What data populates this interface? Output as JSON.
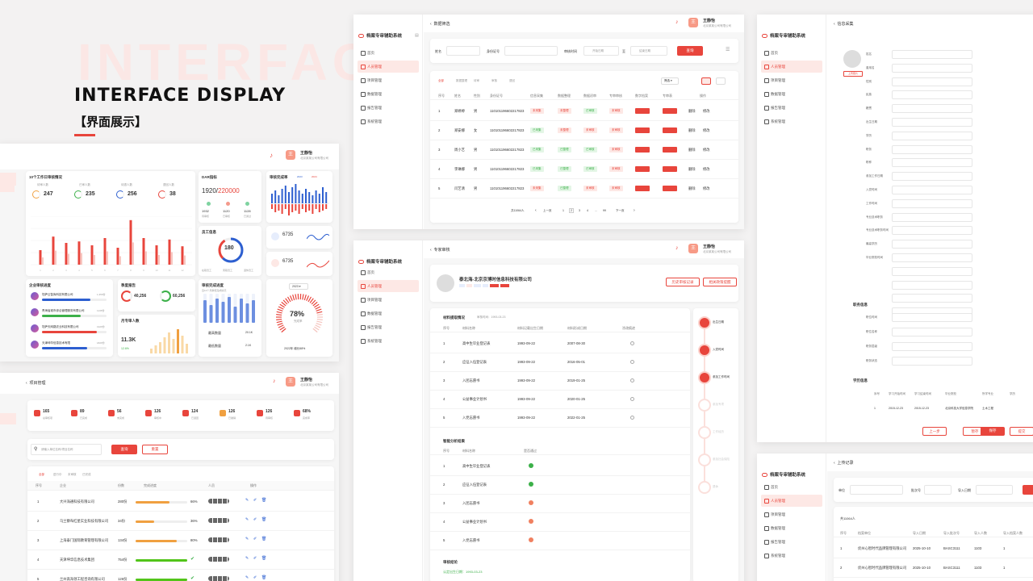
{
  "hero": {
    "bg_word": "INTERFACE",
    "title": "INTERFACE DISPLAY",
    "subtitle": "【界面展示】"
  },
  "user": {
    "name": "王静怡",
    "company": "北京某某公司有限公司",
    "avatar": "王"
  },
  "app": {
    "name": "档案专审辅助系统",
    "nav": [
      "首页",
      "人员管理",
      "项目管理",
      "数据管理",
      "报告管理",
      "系统管理"
    ]
  },
  "dashboard": {
    "work_title": "10个工作日审核情况",
    "stats": [
      {
        "label": "待审人数",
        "value": "247"
      },
      {
        "label": "已审人数",
        "value": "235"
      },
      {
        "label": "待退人数",
        "value": "256"
      },
      {
        "label": "退回人数",
        "value": "38"
      }
    ],
    "chart_data": {
      "type": "bar",
      "categories": [
        "1",
        "2",
        "3",
        "4",
        "5",
        "6",
        "7",
        "8",
        "9",
        "10",
        "11",
        "12"
      ],
      "values": [
        30,
        58,
        45,
        48,
        40,
        55,
        35,
        92,
        55,
        40,
        52,
        38
      ],
      "ylim": [
        0,
        100
      ]
    },
    "dar_title": "DAR指标",
    "dar_value": "1920",
    "dar_total": "220000",
    "dar_sub": [
      {
        "v": "1932",
        "l": "待审核"
      },
      {
        "v": "1120",
        "l": "已审核"
      },
      {
        "v": "1128",
        "l": "已通过"
      }
    ],
    "staff_title": "员工信息",
    "staff_total": "180",
    "staff_legend": [
      "在职员工",
      "离职员工",
      "退休员工"
    ],
    "review_title": "审核完成率",
    "review_legend": [
      "2023",
      "2024"
    ],
    "mini1": "6735",
    "mini2": "6735",
    "company_title": "企业审核进度",
    "companies": [
      {
        "name": "坦萨云智库科技有限公司",
        "v": "1,356份",
        "p": 0.75
      },
      {
        "name": "青海省城市综合管理服务有限公司",
        "v": "1136份",
        "p": 0.6
      },
      {
        "name": "坦萨天网路农业科技有限公司",
        "v": "1926份",
        "p": 0.85
      },
      {
        "name": "天津坤华信息技术有限",
        "v": "1826份",
        "p": 0.7
      }
    ],
    "quarter_title": "季度报告",
    "q1": "40,256",
    "q2": "60,256",
    "monthly_title": "月专审人数",
    "monthly_value": "11.3K",
    "monthly_pct": "12.6%",
    "audit_title": "审核完成进度",
    "audit_sub": "近12个月审核完成情况",
    "max_label": "最高数量",
    "max_val": "20.1K",
    "min_label": "最低数量",
    "min_val": "2.1K",
    "gauge_year": "2023",
    "gauge_pct": "78%",
    "gauge_label": "完成率",
    "gauge_foot": "2022年 增长68%"
  },
  "filter_panel": {
    "crumb": "数据筛选",
    "labels": {
      "name": "姓名",
      "id": "身份证号",
      "time": "审核时间",
      "to": "至",
      "query": "查询"
    },
    "ph_start": "开始日期",
    "ph_end": "结束日期",
    "tabs": [
      "全部",
      "数据整理",
      "待审",
      "审核",
      "退回"
    ],
    "dropdown": "筛选",
    "headers": [
      "序号",
      "姓名",
      "性别",
      "身份证号",
      "信息采集",
      "数据整理",
      "数据初审",
      "专审审核",
      "数字档案",
      "专审表",
      "操作"
    ],
    "rows": [
      {
        "i": "1",
        "n": "郑婷婷",
        "s": "男",
        "id": "110101196602217823",
        "c1": "未采集",
        "c2": "未整理",
        "c3": "已审核",
        "c4": "未审核",
        "op1": "删除",
        "op2": "修改"
      },
      {
        "i": "2",
        "n": "郑安娜",
        "s": "女",
        "id": "110101196602217823",
        "c1": "已采集",
        "c2": "未整理",
        "c3": "未审核",
        "c4": "未审核",
        "op1": "删除",
        "op2": "修改"
      },
      {
        "i": "3",
        "n": "周小艺",
        "s": "男",
        "id": "110101196602217823",
        "c1": "已采集",
        "c2": "已整理",
        "c3": "已审核",
        "c4": "未审核",
        "op1": "删除",
        "op2": "修改"
      },
      {
        "i": "4",
        "n": "李琳娜",
        "s": "男",
        "id": "110101196602217823",
        "c1": "已采集",
        "c2": "已整理",
        "c3": "已审核",
        "c4": "未审核",
        "op1": "删除",
        "op2": "修改"
      },
      {
        "i": "5",
        "n": "闫艺清",
        "s": "男",
        "id": "110101196602217823",
        "c1": "未采集",
        "c2": "已整理",
        "c3": "未审核",
        "c4": "未审核",
        "op1": "删除",
        "op2": "修改"
      }
    ],
    "pager": {
      "total": "共11064人",
      "prev": "上一页",
      "pages": [
        "1",
        "2",
        "3",
        "4",
        "...",
        "99"
      ],
      "next": "下一页"
    }
  },
  "info_panel": {
    "crumb": "信息采集",
    "photo_btn": "上传照片",
    "fields": [
      "姓名",
      "曾用名",
      "性别",
      "民族",
      "籍贯",
      "出生日期",
      "学历",
      "职务",
      "职称",
      "参加工作日期",
      "入党时间",
      "工作时间",
      "专业技术职务",
      "专业技术职务时间",
      "最高学历",
      "毕业院校时间",
      "",
      "",
      "",
      ""
    ],
    "job_title": "职务信息",
    "job_fields": [
      "职位时间",
      "职位名称",
      "职务层级",
      "职务状态"
    ],
    "edu_title": "学历信息",
    "edu_headers": [
      "序号",
      "学习开始时间",
      "学习结束时间",
      "毕业院校",
      "所学专业",
      "学历"
    ],
    "edu_row": [
      "1",
      "2015-12-23",
      "2015-12-23",
      "北京科技大学信息学院",
      "土木工程"
    ],
    "buttons": [
      "上一步",
      "暂存",
      "保存",
      "提交"
    ]
  },
  "project_panel": {
    "crumb": "项目管理",
    "stats": [
      {
        "v": "165",
        "l": "总审核项"
      },
      {
        "v": "89",
        "l": "已完成"
      },
      {
        "v": "56",
        "l": "未完成"
      },
      {
        "v": "126",
        "l": "审核中"
      },
      {
        "v": "124",
        "l": "已退回"
      },
      {
        "v": "126",
        "l": "已撤销"
      },
      {
        "v": "126",
        "l": "待审核"
      },
      {
        "v": "68%",
        "l": "完成率"
      }
    ],
    "search_ph": "请输入单位名称/项目名称",
    "query": "查询",
    "reset": "重置",
    "tabs": [
      "全部",
      "进行中",
      "未审核",
      "已完成"
    ],
    "headers": [
      "序号",
      "企业",
      "份数",
      "完成进度",
      "人员",
      "操作"
    ],
    "rows": [
      {
        "i": "1",
        "n": "大兴海通科技有限公司",
        "c": "280份",
        "p": 0.66,
        "pv": "66%",
        "col": "#f0a040"
      },
      {
        "i": "2",
        "n": "乌兰察布红星实业科技有限公司",
        "c": "34份",
        "p": 0.36,
        "pv": "36%",
        "col": "#f0a040"
      },
      {
        "i": "3",
        "n": "上海泰门国际教育管理有限公司",
        "c": "134份",
        "p": 0.8,
        "pv": "80%",
        "col": "#f0a040"
      },
      {
        "i": "4",
        "n": "天津坤华信息技术集团",
        "c": "754份",
        "p": 1,
        "pv": "",
        "col": "#52c41a"
      },
      {
        "i": "5",
        "n": "兰州高海领工程咨询有限公司",
        "c": "126份",
        "p": 1,
        "pv": "",
        "col": "#52c41a"
      }
    ]
  },
  "expert_panel": {
    "crumb": "专家审核",
    "company": "泰北海-北京京博时信息科技有限公司",
    "btn1": "历史审核记录",
    "btn2": "相关政策提醒",
    "material_title": "材料提取情况",
    "material_time": "审核时间：1993-03-23",
    "mat_headers": [
      "序号",
      "材料名称",
      "材料记载出生日期",
      "材料形成日期",
      "涂改痕迹"
    ],
    "materials": [
      {
        "i": "1",
        "n": "高中生毕业登记表",
        "b": "1993-09-22",
        "f": "2007-08-30"
      },
      {
        "i": "2",
        "n": "应征入伍登记表",
        "b": "1993-09-22",
        "f": "2016-05-01"
      },
      {
        "i": "3",
        "n": "入团志愿书",
        "b": "1993-09-22",
        "f": "2019-01-25"
      },
      {
        "i": "4",
        "n": "公益事业计划书",
        "b": "1993-09-22",
        "f": "2020-01-25"
      },
      {
        "i": "5",
        "n": "入党志愿书",
        "b": "1993-09-22",
        "f": "2022-01-25"
      }
    ],
    "smart_title": "智能分析结果",
    "smart_headers": [
      "序号",
      "材料名称",
      "是否通过"
    ],
    "smart": [
      "高中生毕业登记表",
      "应征入伍登记表",
      "入团志愿书",
      "公益事业计划书",
      "入党志愿书"
    ],
    "smart_ok": [
      true,
      true,
      false,
      false,
      false
    ],
    "conclusion": "审核结论",
    "conclusion_sub": "认定出生日期：1993-03-23",
    "timeline": [
      "出生日期",
      "入党时间",
      "参加工作时间",
      "参加专项",
      "工作经历",
      "参加社会保险",
      "退休"
    ]
  },
  "upload_panel": {
    "crumb": "上传记录",
    "labels": [
      "单位",
      "批次号",
      "导入日期"
    ],
    "total": "共11064人",
    "headers": [
      "序号",
      "档案单位",
      "导入日期",
      "导入批次号",
      "导入人数",
      "导入档案人数"
    ],
    "rows": [
      [
        "1",
        "优州心智时代品牌管理有限公司",
        "2025-10-10",
        "BASC3111",
        "1103",
        "1"
      ],
      [
        "2",
        "优州心智时代品牌管理有限公司",
        "2025-10-10",
        "BASC3111",
        "1103",
        "1"
      ]
    ]
  }
}
